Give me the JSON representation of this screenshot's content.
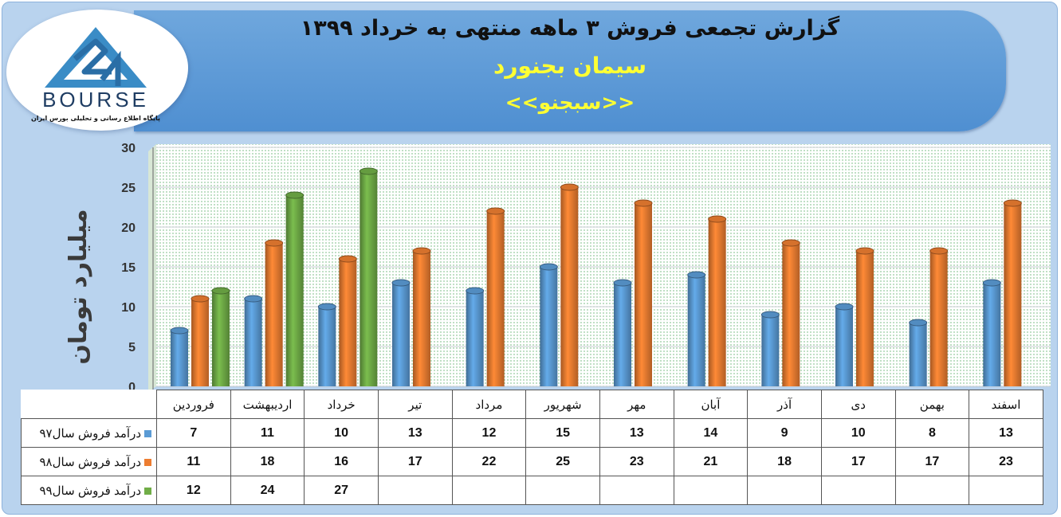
{
  "header": {
    "title": "گزارش تجمعی فروش  ۳ ماهه منتهی به خرداد ۱۳۹۹",
    "company": "سیمان بجنورد",
    "symbol": "<<سبجنو>>"
  },
  "logo": {
    "wordmark": "BOURSE",
    "tagline": "پایگاه اطلاع رسانی و تحلیلی بورس ایران"
  },
  "colors": {
    "series_97": "#5b9bd5",
    "series_98": "#ed7d31",
    "series_99": "#70ad47"
  },
  "chart_data": {
    "type": "bar",
    "ylabel": "میلیارد تومان",
    "ylim": [
      0,
      30
    ],
    "yticks": [
      0,
      5,
      10,
      15,
      20,
      25,
      30
    ],
    "grid": true,
    "categories": [
      "فروردین",
      "اردیبهشت",
      "خرداد",
      "تیر",
      "مرداد",
      "شهریور",
      "مهر",
      "آبان",
      "آذر",
      "دی",
      "بهمن",
      "اسفند"
    ],
    "series": [
      {
        "name": "درآمد فروش سال۹۷",
        "color": "#5b9bd5",
        "values": [
          7,
          11,
          10,
          13,
          12,
          15,
          13,
          14,
          9,
          10,
          8,
          13
        ]
      },
      {
        "name": "درآمد فروش سال۹۸",
        "color": "#ed7d31",
        "values": [
          11,
          18,
          16,
          17,
          22,
          25,
          23,
          21,
          18,
          17,
          17,
          23
        ]
      },
      {
        "name": "درآمد فروش سال۹۹",
        "color": "#70ad47",
        "values": [
          12,
          24,
          27,
          null,
          null,
          null,
          null,
          null,
          null,
          null,
          null,
          null
        ]
      }
    ]
  }
}
